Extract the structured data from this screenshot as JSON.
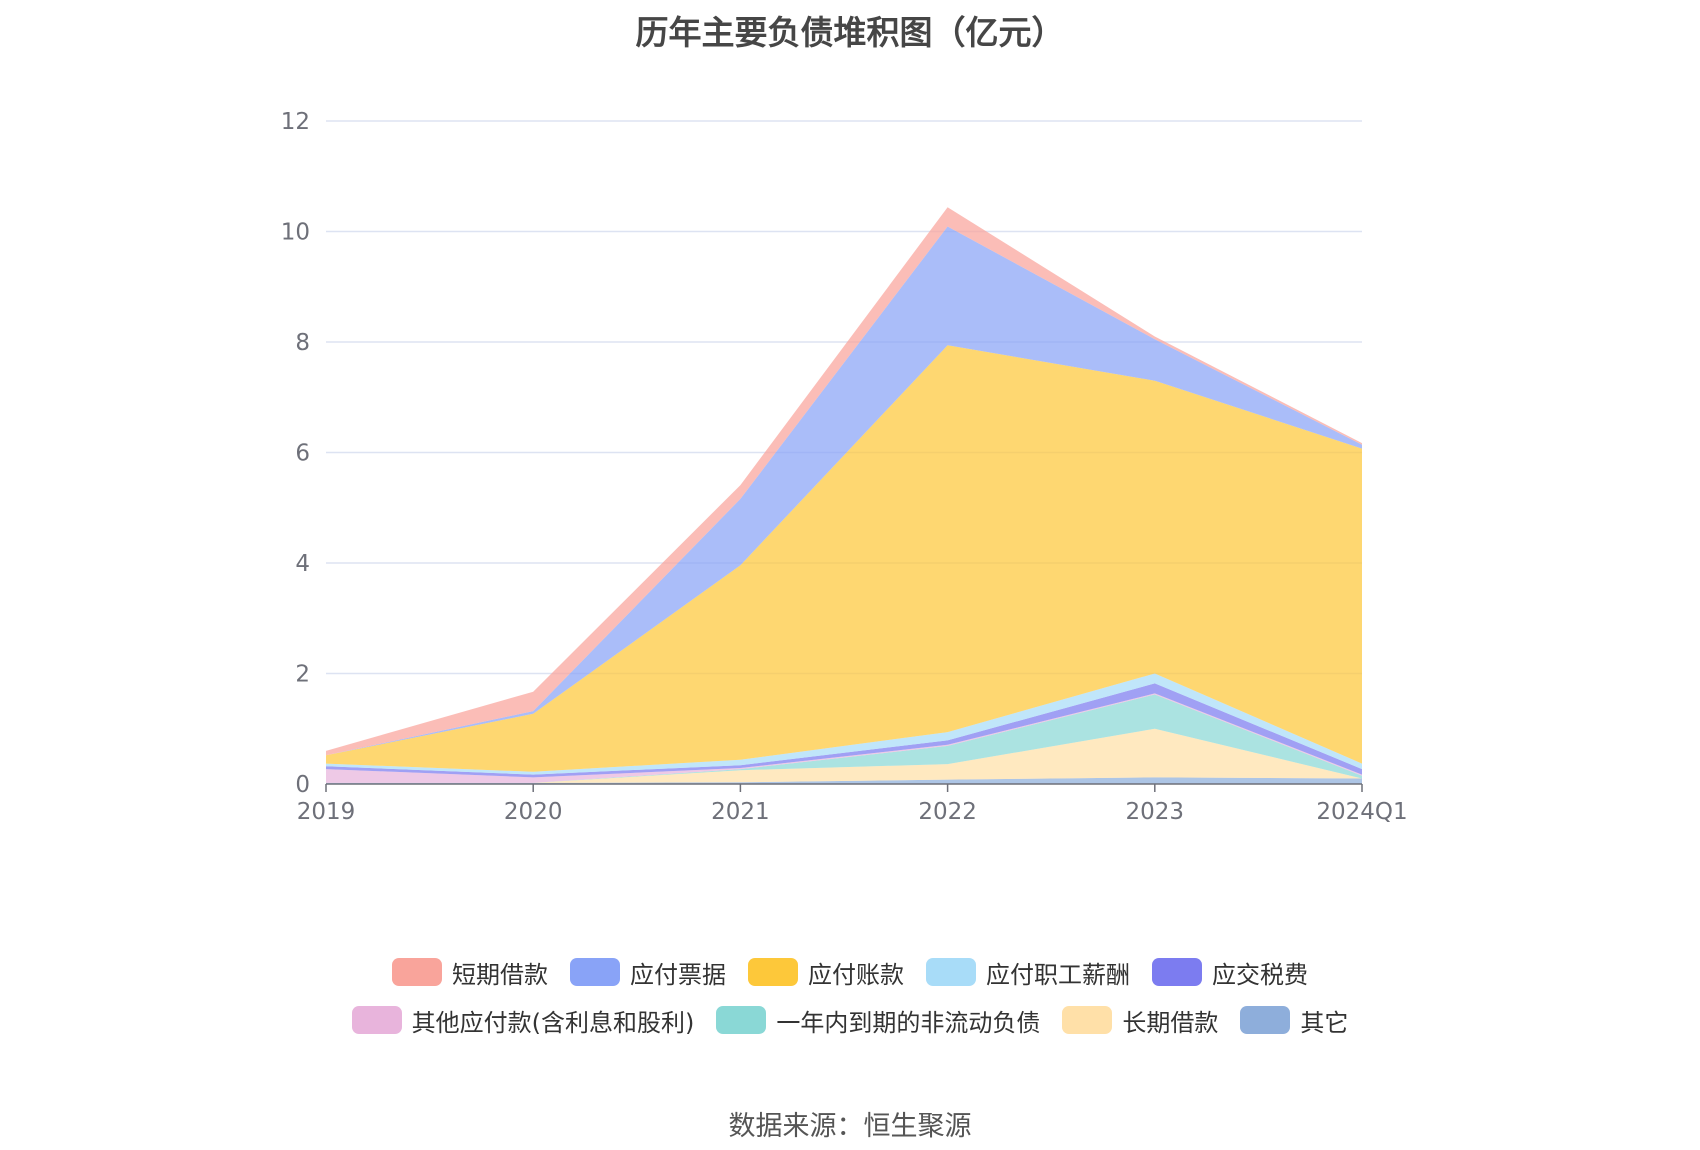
{
  "chart_data": {
    "type": "area",
    "stacked": true,
    "title": "历年主要负债堆积图（亿元）",
    "categories": [
      "2019",
      "2020",
      "2021",
      "2022",
      "2023",
      "2024Q1"
    ],
    "y_ticks": [
      "0",
      "2",
      "4",
      "6",
      "8",
      "10",
      "12"
    ],
    "ylim": [
      0,
      12
    ],
    "grid": true,
    "legend_position": "bottom",
    "series": [
      {
        "name": "其它",
        "color": "#8eaedb",
        "values": [
          0.02,
          0.02,
          0.03,
          0.08,
          0.12,
          0.1
        ]
      },
      {
        "name": "长期借款",
        "color": "#ffe0a8",
        "values": [
          0.0,
          0.0,
          0.22,
          0.28,
          0.88,
          0.0
        ]
      },
      {
        "name": "一年内到期的非流动负债",
        "color": "#8ad8d6",
        "values": [
          0.0,
          0.0,
          0.02,
          0.33,
          0.62,
          0.05
        ]
      },
      {
        "name": "其他应付款(含利息和股利)",
        "color": "#e8b4dc",
        "values": [
          0.25,
          0.1,
          0.02,
          0.02,
          0.02,
          0.02
        ]
      },
      {
        "name": "应交税费",
        "color": "#7c7cf0",
        "values": [
          0.05,
          0.05,
          0.05,
          0.08,
          0.18,
          0.1
        ]
      },
      {
        "name": "应付职工薪酬",
        "color": "#a8dcf8",
        "values": [
          0.05,
          0.05,
          0.1,
          0.15,
          0.18,
          0.1
        ]
      },
      {
        "name": "应付账款",
        "color": "#fdc83a",
        "values": [
          0.15,
          1.05,
          3.52,
          7.0,
          5.3,
          5.7
        ]
      },
      {
        "name": "应付票据",
        "color": "#89a3f7",
        "values": [
          0.0,
          0.05,
          1.2,
          2.15,
          0.75,
          0.07
        ]
      },
      {
        "name": "短期借款",
        "color": "#f9a49b",
        "values": [
          0.08,
          0.35,
          0.25,
          0.35,
          0.05,
          0.03
        ]
      }
    ]
  },
  "legend": {
    "row1": [
      {
        "label": "短期借款",
        "color": "#f9a49b"
      },
      {
        "label": "应付票据",
        "color": "#89a3f7"
      },
      {
        "label": "应付账款",
        "color": "#fdc83a"
      },
      {
        "label": "应付职工薪酬",
        "color": "#a8dcf8"
      },
      {
        "label": "应交税费",
        "color": "#7c7cf0"
      }
    ],
    "row2": [
      {
        "label": "其他应付款(含利息和股利)",
        "color": "#e8b4dc"
      },
      {
        "label": "一年内到期的非流动负债",
        "color": "#8ad8d6"
      },
      {
        "label": "长期借款",
        "color": "#ffe0a8"
      },
      {
        "label": "其它",
        "color": "#8eaedb"
      }
    ]
  },
  "source_text": "数据来源：恒生聚源"
}
